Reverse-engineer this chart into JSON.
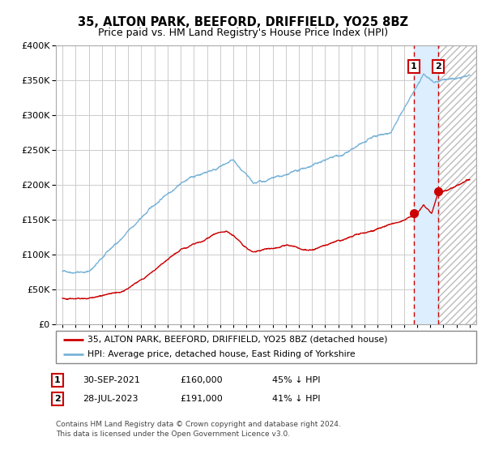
{
  "title": "35, ALTON PARK, BEEFORD, DRIFFIELD, YO25 8BZ",
  "subtitle": "Price paid vs. HM Land Registry's House Price Index (HPI)",
  "legend_line1": "35, ALTON PARK, BEEFORD, DRIFFIELD, YO25 8BZ (detached house)",
  "legend_line2": "HPI: Average price, detached house, East Riding of Yorkshire",
  "footer1": "Contains HM Land Registry data © Crown copyright and database right 2024.",
  "footer2": "This data is licensed under the Open Government Licence v3.0.",
  "annotation1_date": "30-SEP-2021",
  "annotation1_price": "£160,000",
  "annotation1_hpi": "45% ↓ HPI",
  "annotation2_date": "28-JUL-2023",
  "annotation2_price": "£191,000",
  "annotation2_hpi": "41% ↓ HPI",
  "hpi_color": "#7ab4d8",
  "price_color": "#cc0000",
  "highlight_color": "#ddeeff",
  "x_start_year": 1995,
  "x_end_year": 2026,
  "ylim_min": 0,
  "ylim_max": 400000,
  "sale1_year": 2021.75,
  "sale1_value": 160000,
  "sale2_year": 2023.58,
  "sale2_value": 191000
}
